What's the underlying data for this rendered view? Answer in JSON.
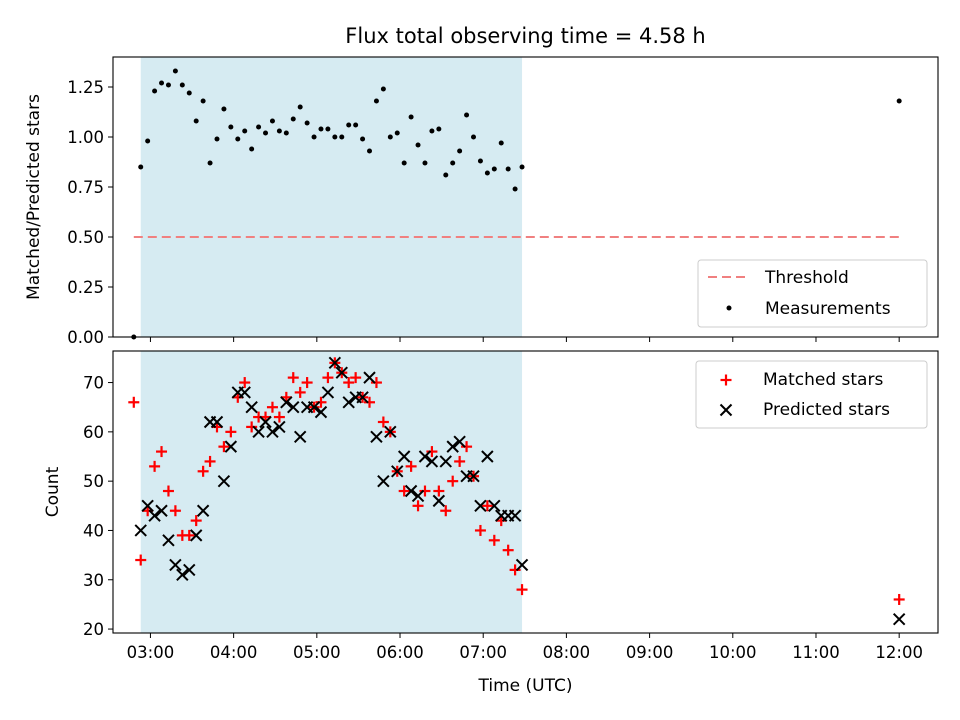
{
  "chart_data": [
    {
      "type": "scatter",
      "title": "Flux total observing time = 4.58 h",
      "ylabel": "Matched/Predicted stars",
      "ylim": [
        0,
        1.4
      ],
      "yticks": [
        0.0,
        0.25,
        0.5,
        0.75,
        1.0,
        1.25
      ],
      "ytick_labels": [
        "0.00",
        "0.25",
        "0.50",
        "0.75",
        "1.00",
        "1.25"
      ],
      "xlim": [
        "02:33",
        "12:28"
      ],
      "shaded_interval": [
        "02:53",
        "07:28"
      ],
      "shade_color": "#add8e6",
      "legend_position": "lower right",
      "threshold": {
        "name": "Threshold",
        "value": 0.5,
        "x_range": [
          "02:48",
          "12:00"
        ],
        "color": "#f08080",
        "style": "dashed"
      },
      "series": [
        {
          "name": "Measurements",
          "color": "#000000",
          "marker": "dot",
          "points": [
            [
              "02:48",
              0.0
            ],
            [
              "02:53",
              0.85
            ],
            [
              "02:58",
              0.98
            ],
            [
              "03:03",
              1.23
            ],
            [
              "03:08",
              1.27
            ],
            [
              "03:13",
              1.26
            ],
            [
              "03:18",
              1.33
            ],
            [
              "03:23",
              1.26
            ],
            [
              "03:28",
              1.22
            ],
            [
              "03:33",
              1.08
            ],
            [
              "03:38",
              1.18
            ],
            [
              "03:43",
              0.87
            ],
            [
              "03:48",
              0.99
            ],
            [
              "03:53",
              1.14
            ],
            [
              "03:58",
              1.05
            ],
            [
              "04:03",
              0.99
            ],
            [
              "04:08",
              1.03
            ],
            [
              "04:13",
              0.94
            ],
            [
              "04:18",
              1.05
            ],
            [
              "04:23",
              1.02
            ],
            [
              "04:28",
              1.08
            ],
            [
              "04:33",
              1.03
            ],
            [
              "04:38",
              1.02
            ],
            [
              "04:43",
              1.09
            ],
            [
              "04:48",
              1.15
            ],
            [
              "04:53",
              1.07
            ],
            [
              "04:58",
              1.0
            ],
            [
              "05:03",
              1.04
            ],
            [
              "05:08",
              1.04
            ],
            [
              "05:13",
              1.0
            ],
            [
              "05:18",
              1.0
            ],
            [
              "05:23",
              1.06
            ],
            [
              "05:28",
              1.06
            ],
            [
              "05:33",
              0.99
            ],
            [
              "05:38",
              0.93
            ],
            [
              "05:43",
              1.18
            ],
            [
              "05:48",
              1.24
            ],
            [
              "05:53",
              1.0
            ],
            [
              "05:58",
              1.02
            ],
            [
              "06:03",
              0.87
            ],
            [
              "06:08",
              1.1
            ],
            [
              "06:13",
              0.96
            ],
            [
              "06:18",
              0.87
            ],
            [
              "06:23",
              1.03
            ],
            [
              "06:28",
              1.04
            ],
            [
              "06:33",
              0.81
            ],
            [
              "06:38",
              0.87
            ],
            [
              "06:43",
              0.93
            ],
            [
              "06:48",
              1.11
            ],
            [
              "06:53",
              1.0
            ],
            [
              "06:58",
              0.88
            ],
            [
              "07:03",
              0.82
            ],
            [
              "07:08",
              0.84
            ],
            [
              "07:13",
              0.97
            ],
            [
              "07:18",
              0.84
            ],
            [
              "07:23",
              0.74
            ],
            [
              "07:28",
              0.85
            ],
            [
              "12:00",
              1.18
            ]
          ]
        }
      ]
    },
    {
      "type": "scatter",
      "ylabel": "Count",
      "xlabel": "Time (UTC)",
      "ylim": [
        19.2,
        76.4
      ],
      "yticks": [
        20,
        30,
        40,
        50,
        60,
        70
      ],
      "ytick_labels": [
        "20",
        "30",
        "40",
        "50",
        "60",
        "70"
      ],
      "xticks": [
        "03:00",
        "04:00",
        "05:00",
        "06:00",
        "07:00",
        "08:00",
        "09:00",
        "10:00",
        "11:00",
        "12:00"
      ],
      "xtick_labels": [
        "03:00",
        "04:00",
        "05:00",
        "06:00",
        "07:00",
        "08:00",
        "09:00",
        "10:00",
        "11:00",
        "12:00"
      ],
      "xlim": [
        "02:33",
        "12:28"
      ],
      "shaded_interval": [
        "02:53",
        "07:28"
      ],
      "shade_color": "#add8e6",
      "legend_position": "upper right",
      "series": [
        {
          "name": "Matched stars",
          "color": "#ff0000",
          "marker": "plus",
          "points": [
            [
              "02:48",
              66
            ],
            [
              "02:53",
              34
            ],
            [
              "02:58",
              44
            ],
            [
              "03:03",
              53
            ],
            [
              "03:08",
              56
            ],
            [
              "03:13",
              48
            ],
            [
              "03:18",
              44
            ],
            [
              "03:23",
              39
            ],
            [
              "03:28",
              39
            ],
            [
              "03:33",
              42
            ],
            [
              "03:38",
              52
            ],
            [
              "03:43",
              54
            ],
            [
              "03:48",
              61
            ],
            [
              "03:53",
              57
            ],
            [
              "03:58",
              60
            ],
            [
              "04:03",
              67
            ],
            [
              "04:08",
              70
            ],
            [
              "04:13",
              61
            ],
            [
              "04:18",
              63
            ],
            [
              "04:23",
              63
            ],
            [
              "04:28",
              65
            ],
            [
              "04:33",
              63
            ],
            [
              "04:38",
              67
            ],
            [
              "04:43",
              71
            ],
            [
              "04:48",
              68
            ],
            [
              "04:53",
              70
            ],
            [
              "04:58",
              65
            ],
            [
              "05:03",
              66
            ],
            [
              "05:08",
              71
            ],
            [
              "05:13",
              74
            ],
            [
              "05:18",
              72
            ],
            [
              "05:23",
              70
            ],
            [
              "05:28",
              71
            ],
            [
              "05:33",
              67
            ],
            [
              "05:38",
              66
            ],
            [
              "05:43",
              70
            ],
            [
              "05:48",
              62
            ],
            [
              "05:53",
              60
            ],
            [
              "05:58",
              52
            ],
            [
              "06:03",
              48
            ],
            [
              "06:08",
              53
            ],
            [
              "06:13",
              45
            ],
            [
              "06:18",
              48
            ],
            [
              "06:23",
              56
            ],
            [
              "06:28",
              48
            ],
            [
              "06:33",
              44
            ],
            [
              "06:38",
              50
            ],
            [
              "06:43",
              54
            ],
            [
              "06:48",
              57
            ],
            [
              "06:53",
              51
            ],
            [
              "06:58",
              40
            ],
            [
              "07:03",
              45
            ],
            [
              "07:08",
              38
            ],
            [
              "07:13",
              42
            ],
            [
              "07:18",
              36
            ],
            [
              "07:23",
              32
            ],
            [
              "07:28",
              28
            ],
            [
              "12:00",
              26
            ]
          ]
        },
        {
          "name": "Predicted stars",
          "color": "#000000",
          "marker": "x",
          "points": [
            [
              "02:53",
              40
            ],
            [
              "02:58",
              45
            ],
            [
              "03:03",
              43
            ],
            [
              "03:08",
              44
            ],
            [
              "03:13",
              38
            ],
            [
              "03:18",
              33
            ],
            [
              "03:23",
              31
            ],
            [
              "03:28",
              32
            ],
            [
              "03:33",
              39
            ],
            [
              "03:38",
              44
            ],
            [
              "03:43",
              62
            ],
            [
              "03:48",
              62
            ],
            [
              "03:53",
              50
            ],
            [
              "03:58",
              57
            ],
            [
              "04:03",
              68
            ],
            [
              "04:08",
              68
            ],
            [
              "04:13",
              65
            ],
            [
              "04:18",
              60
            ],
            [
              "04:23",
              62
            ],
            [
              "04:28",
              60
            ],
            [
              "04:33",
              61
            ],
            [
              "04:38",
              66
            ],
            [
              "04:43",
              65
            ],
            [
              "04:48",
              59
            ],
            [
              "04:53",
              65
            ],
            [
              "04:58",
              65
            ],
            [
              "05:03",
              64
            ],
            [
              "05:08",
              68
            ],
            [
              "05:13",
              74
            ],
            [
              "05:18",
              72
            ],
            [
              "05:23",
              66
            ],
            [
              "05:28",
              67
            ],
            [
              "05:33",
              67
            ],
            [
              "05:38",
              71
            ],
            [
              "05:43",
              59
            ],
            [
              "05:48",
              50
            ],
            [
              "05:53",
              60
            ],
            [
              "05:58",
              52
            ],
            [
              "06:03",
              55
            ],
            [
              "06:08",
              48
            ],
            [
              "06:13",
              47
            ],
            [
              "06:18",
              55
            ],
            [
              "06:23",
              54
            ],
            [
              "06:28",
              46
            ],
            [
              "06:33",
              54
            ],
            [
              "06:38",
              57
            ],
            [
              "06:43",
              58
            ],
            [
              "06:48",
              51
            ],
            [
              "06:53",
              51
            ],
            [
              "06:58",
              45
            ],
            [
              "07:03",
              55
            ],
            [
              "07:08",
              45
            ],
            [
              "07:13",
              43
            ],
            [
              "07:18",
              43
            ],
            [
              "07:23",
              43
            ],
            [
              "07:28",
              33
            ],
            [
              "12:00",
              22
            ]
          ]
        }
      ]
    }
  ]
}
